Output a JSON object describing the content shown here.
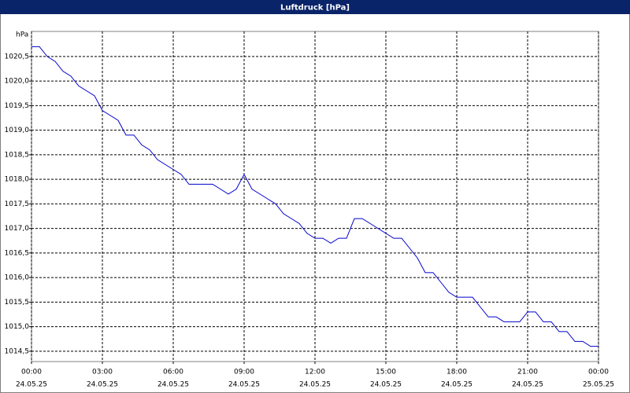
{
  "chart_data": {
    "type": "line",
    "title": "Luftdruck [hPa]",
    "y_unit": "hPa",
    "x": [
      0,
      20,
      40,
      60,
      80,
      100,
      120,
      140,
      160,
      180,
      200,
      220,
      240,
      260,
      280,
      300,
      320,
      340,
      360,
      380,
      400,
      420,
      440,
      460,
      480,
      500,
      520,
      540,
      560,
      580,
      600,
      620,
      640,
      660,
      680,
      700,
      720,
      740,
      760,
      780,
      800,
      820,
      840,
      860,
      880,
      900,
      920,
      940,
      960,
      980,
      1000,
      1020,
      1040,
      1060,
      1080,
      1100,
      1120,
      1140,
      1160,
      1180,
      1200,
      1220,
      1240,
      1260,
      1280,
      1300,
      1320,
      1340,
      1360,
      1380,
      1400,
      1420,
      1440
    ],
    "series": [
      {
        "color": "#0000cc",
        "values": [
          1020.7,
          1020.7,
          1020.5,
          1020.4,
          1020.2,
          1020.1,
          1019.9,
          1019.8,
          1019.7,
          1019.4,
          1019.3,
          1019.2,
          1018.9,
          1018.9,
          1018.7,
          1018.6,
          1018.4,
          1018.3,
          1018.2,
          1018.1,
          1017.9,
          1017.9,
          1017.9,
          1017.9,
          1017.8,
          1017.7,
          1017.8,
          1018.1,
          1017.8,
          1017.7,
          1017.6,
          1017.5,
          1017.3,
          1017.2,
          1017.1,
          1016.9,
          1016.8,
          1016.8,
          1016.7,
          1016.8,
          1016.8,
          1017.2,
          1017.2,
          1017.1,
          1017.0,
          1016.9,
          1016.8,
          1016.8,
          1016.6,
          1016.4,
          1016.1,
          1016.1,
          1015.9,
          1015.7,
          1015.6,
          1015.6,
          1015.6,
          1015.4,
          1015.2,
          1015.2,
          1015.1,
          1015.1,
          1015.1,
          1015.3,
          1015.3,
          1015.1,
          1015.1,
          1014.9,
          1014.9,
          1014.7,
          1014.7,
          1014.6,
          1014.6
        ]
      }
    ],
    "xlim": [
      0,
      1440
    ],
    "xticks": [
      {
        "value": 0,
        "label": "00:00"
      },
      {
        "value": 180,
        "label": "03:00"
      },
      {
        "value": 360,
        "label": "06:00"
      },
      {
        "value": 540,
        "label": "09:00"
      },
      {
        "value": 720,
        "label": "12:00"
      },
      {
        "value": 900,
        "label": "15:00"
      },
      {
        "value": 1080,
        "label": "18:00"
      },
      {
        "value": 1260,
        "label": "21:00"
      },
      {
        "value": 1440,
        "label": "00:00"
      }
    ],
    "xtick_dates": [
      "24.05.25",
      "24.05.25",
      "24.05.25",
      "24.05.25",
      "24.05.25",
      "24.05.25",
      "24.05.25",
      "24.05.25",
      "25.05.25"
    ],
    "ylim": [
      1014.29,
      1021.01
    ],
    "yticks": [
      {
        "value": 1014.5,
        "label": "1014,5"
      },
      {
        "value": 1015,
        "label": "1015,0"
      },
      {
        "value": 1015.5,
        "label": "1015,5"
      },
      {
        "value": 1016,
        "label": "1016,0"
      },
      {
        "value": 1016.5,
        "label": "1016,5"
      },
      {
        "value": 1017,
        "label": "1017,0"
      },
      {
        "value": 1017.5,
        "label": "1017,5"
      },
      {
        "value": 1018,
        "label": "1018,0"
      },
      {
        "value": 1018.5,
        "label": "1018,5"
      },
      {
        "value": 1019,
        "label": "1019,0"
      },
      {
        "value": 1019.5,
        "label": "1019,5"
      },
      {
        "value": 1020,
        "label": "1020,0"
      },
      {
        "value": 1020.5,
        "label": "1020,5"
      }
    ],
    "grid": true
  }
}
